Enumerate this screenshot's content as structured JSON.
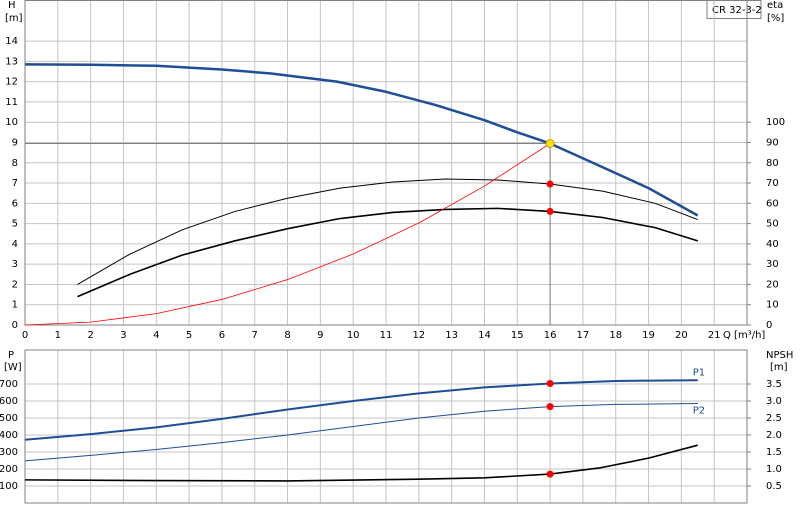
{
  "chart_data": [
    {
      "type": "line",
      "title": "CR 32-3-2",
      "y_label": "H",
      "y_unit": "[m]",
      "y2_label": "eta",
      "y2_unit": "[%]",
      "x_label": "Q [m³/h]",
      "xlim": [
        0,
        22
      ],
      "xticks": [
        0,
        1,
        2,
        3,
        4,
        5,
        6,
        7,
        8,
        9,
        10,
        11,
        12,
        13,
        14,
        15,
        16,
        17,
        18,
        19,
        20,
        21
      ],
      "ylim": [
        0,
        16
      ],
      "yticks": [
        0,
        1,
        2,
        3,
        4,
        5,
        6,
        7,
        8,
        9,
        10,
        11,
        12,
        13,
        14
      ],
      "y2lim": [
        0,
        160
      ],
      "y2ticks": [
        0,
        10,
        20,
        30,
        40,
        50,
        60,
        70,
        80,
        90,
        100
      ],
      "grid": true,
      "operating_point": {
        "q": 16,
        "h": 8.95
      },
      "series": [
        {
          "color": "#1f4e96",
          "width": 2.5,
          "x": [
            0,
            2,
            4,
            6,
            7.5,
            9.5,
            11,
            12.5,
            14,
            15,
            16,
            17.3,
            19,
            20.5
          ],
          "values": [
            12.85,
            12.83,
            12.78,
            12.6,
            12.4,
            12.0,
            11.5,
            10.85,
            10.1,
            9.5,
            8.95,
            8.0,
            6.75,
            5.4
          ]
        },
        {
          "color": "#000000",
          "width": 1,
          "axis": "y2",
          "x": [
            1.6,
            3.2,
            4.8,
            6.4,
            8,
            9.6,
            11.2,
            12.8,
            14.4,
            16,
            17.6,
            19.2,
            20.5
          ],
          "values": [
            20,
            35,
            47,
            56,
            62.5,
            67.5,
            70.5,
            72,
            71.5,
            69.5,
            66,
            60,
            52
          ]
        },
        {
          "color": "#000000",
          "width": 1.6,
          "axis": "y2",
          "x": [
            1.6,
            3.2,
            4.8,
            6.4,
            8,
            9.6,
            11.2,
            12.8,
            14.4,
            16,
            17.6,
            19.2,
            20.5
          ],
          "values": [
            14,
            25,
            34.5,
            41.5,
            47.5,
            52.5,
            55.5,
            57,
            57.5,
            56,
            53,
            48,
            41.5
          ]
        },
        {
          "color": "#ff0000",
          "width": 0.8,
          "x": [
            0,
            2,
            4,
            6,
            8,
            10,
            12,
            14,
            16
          ],
          "values": [
            0,
            0.14,
            0.56,
            1.26,
            2.24,
            3.5,
            5.03,
            6.85,
            8.95
          ]
        }
      ]
    },
    {
      "type": "line",
      "y_label": "P",
      "y_unit": "[W]",
      "y2_label": "NPSH",
      "y2_unit": "[m]",
      "xlim": [
        0,
        22
      ],
      "ylim": [
        0,
        900
      ],
      "yticks": [
        100,
        200,
        300,
        400,
        500,
        600,
        700
      ],
      "y2lim": [
        0,
        4.5
      ],
      "y2ticks": [
        0.5,
        {
          "value": 1,
          "label": "1.0"
        },
        1.5,
        {
          "value": 2,
          "label": "2.0"
        },
        2.5,
        {
          "value": 3,
          "label": "3.0"
        },
        3.5
      ],
      "grid": true,
      "operating_point": {
        "q": 16
      },
      "series": [
        {
          "name": "P1",
          "color": "#1f4e96",
          "width": 2,
          "x": [
            0,
            2,
            4,
            6,
            8,
            10,
            12,
            14,
            16,
            18,
            20.5
          ],
          "values": [
            372,
            405,
            445,
            495,
            550,
            600,
            645,
            680,
            703,
            718,
            722
          ]
        },
        {
          "name": "P2",
          "color": "#1f4e96",
          "width": 1,
          "x": [
            0,
            2,
            4,
            6,
            8,
            10,
            12,
            14,
            16,
            18,
            20.5
          ],
          "values": [
            248,
            280,
            315,
            355,
            400,
            450,
            500,
            540,
            567,
            580,
            585
          ]
        },
        {
          "color": "#000000",
          "width": 1.6,
          "axis": "y2",
          "x": [
            0,
            4,
            8,
            12,
            14,
            16,
            17.5,
            19,
            20.5
          ],
          "values": [
            0.68,
            0.66,
            0.65,
            0.7,
            0.74,
            0.85,
            1.03,
            1.32,
            1.7
          ]
        }
      ]
    }
  ]
}
